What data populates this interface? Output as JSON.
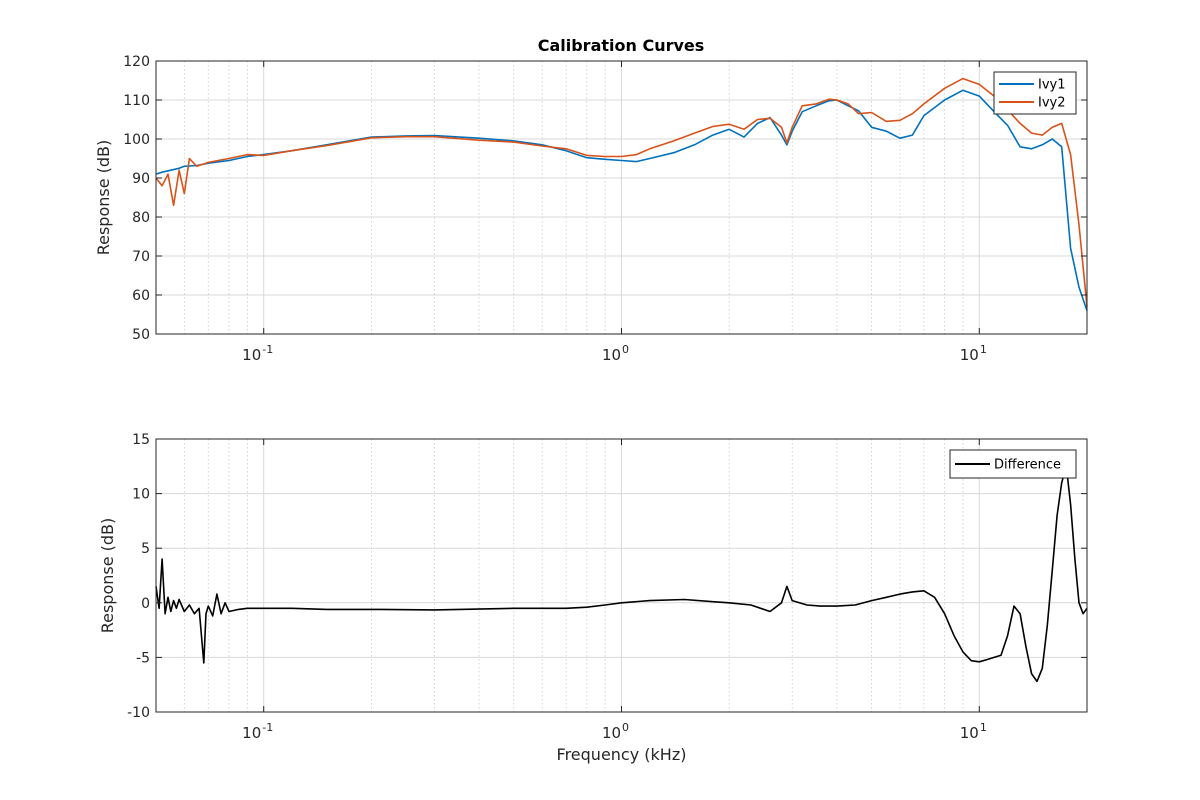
{
  "figure": {
    "title": "Calibration Curves"
  },
  "chart_data": [
    {
      "type": "line",
      "title": "Calibration Curves",
      "xlabel": "",
      "ylabel": "Response (dB)",
      "xscale": "log",
      "xlim": [
        0.05,
        20
      ],
      "ylim": [
        50,
        120
      ],
      "yticks": [
        50,
        60,
        70,
        80,
        90,
        100,
        110,
        120
      ],
      "xticks": [
        {
          "value": 0.1,
          "base": "10",
          "exp": "-1"
        },
        {
          "value": 1,
          "base": "10",
          "exp": "0"
        },
        {
          "value": 10,
          "base": "10",
          "exp": "1"
        }
      ],
      "grid": true,
      "legend_position": "top-right",
      "series": [
        {
          "name": "Ivy1",
          "color": "#0072BD",
          "x": [
            0.05,
            0.052,
            0.055,
            0.058,
            0.06,
            0.065,
            0.07,
            0.08,
            0.09,
            0.1,
            0.12,
            0.15,
            0.2,
            0.25,
            0.3,
            0.4,
            0.5,
            0.6,
            0.7,
            0.8,
            0.9,
            1.0,
            1.1,
            1.2,
            1.4,
            1.6,
            1.8,
            2.0,
            2.2,
            2.4,
            2.6,
            2.8,
            2.9,
            3.0,
            3.2,
            3.5,
            3.8,
            4.0,
            4.3,
            4.6,
            5.0,
            5.5,
            6.0,
            6.5,
            7.0,
            8.0,
            9.0,
            10.0,
            11.0,
            12.0,
            13.0,
            14.0,
            15.0,
            16.0,
            17.0,
            18.0,
            19.0,
            20.0
          ],
          "y": [
            91,
            91.5,
            92,
            92.5,
            93,
            93.2,
            93.8,
            94.5,
            95.5,
            96,
            97,
            98.5,
            100.5,
            100.8,
            100.9,
            100.2,
            99.5,
            98.5,
            97,
            95.2,
            94.8,
            94.5,
            94.2,
            95,
            96.5,
            98.5,
            101,
            102.5,
            100.5,
            104,
            105.5,
            101,
            98.5,
            102,
            107,
            108.5,
            109.8,
            110,
            108.5,
            107.2,
            103,
            102,
            100.2,
            101,
            106,
            110,
            112.5,
            111,
            107,
            103.5,
            98,
            97.5,
            98.5,
            100,
            98,
            72,
            62,
            56
          ]
        },
        {
          "name": "Ivy2",
          "color": "#D95319",
          "x": [
            0.05,
            0.052,
            0.054,
            0.056,
            0.058,
            0.06,
            0.062,
            0.065,
            0.07,
            0.08,
            0.09,
            0.1,
            0.12,
            0.15,
            0.2,
            0.25,
            0.3,
            0.4,
            0.5,
            0.6,
            0.7,
            0.8,
            0.9,
            1.0,
            1.1,
            1.2,
            1.4,
            1.6,
            1.8,
            2.0,
            2.2,
            2.4,
            2.6,
            2.8,
            2.9,
            3.0,
            3.2,
            3.5,
            3.8,
            4.0,
            4.3,
            4.6,
            5.0,
            5.5,
            6.0,
            6.5,
            7.0,
            8.0,
            9.0,
            10.0,
            11.0,
            12.0,
            13.0,
            14.0,
            15.0,
            16.0,
            17.0,
            18.0,
            19.0,
            20.0
          ],
          "y": [
            90,
            88,
            91,
            83,
            92,
            86,
            95,
            93,
            94,
            95,
            96,
            95.8,
            97,
            98.3,
            100.3,
            100.6,
            100.6,
            99.7,
            99.2,
            98.2,
            97.5,
            95.8,
            95.5,
            95.5,
            96,
            97.5,
            99.5,
            101.5,
            103.2,
            103.8,
            102.5,
            105,
            105.3,
            103,
            99,
            103,
            108.5,
            109,
            110.2,
            110,
            109,
            106.5,
            106.8,
            104.5,
            104.8,
            106.5,
            109,
            113,
            115.5,
            114,
            111,
            107.5,
            104,
            101.5,
            101,
            103,
            104,
            96,
            78,
            57
          ]
        }
      ]
    },
    {
      "type": "line",
      "title": "",
      "xlabel": "Frequency (kHz)",
      "ylabel": "Response (dB)",
      "xscale": "log",
      "xlim": [
        0.05,
        20
      ],
      "ylim": [
        -10,
        15
      ],
      "yticks": [
        -10,
        -5,
        0,
        5,
        10,
        15
      ],
      "xticks": [
        {
          "value": 0.1,
          "base": "10",
          "exp": "-1"
        },
        {
          "value": 1,
          "base": "10",
          "exp": "0"
        },
        {
          "value": 10,
          "base": "10",
          "exp": "1"
        }
      ],
      "grid": true,
      "legend_position": "top-right",
      "series": [
        {
          "name": "Difference",
          "color": "#000000",
          "x": [
            0.05,
            0.051,
            0.052,
            0.053,
            0.054,
            0.055,
            0.056,
            0.057,
            0.058,
            0.06,
            0.062,
            0.064,
            0.066,
            0.068,
            0.069,
            0.07,
            0.072,
            0.074,
            0.076,
            0.078,
            0.08,
            0.085,
            0.09,
            0.1,
            0.12,
            0.15,
            0.2,
            0.3,
            0.5,
            0.7,
            0.8,
            0.9,
            1.0,
            1.2,
            1.5,
            1.8,
            2.0,
            2.3,
            2.6,
            2.8,
            2.9,
            3.0,
            3.3,
            3.6,
            4.0,
            4.5,
            5.0,
            5.5,
            6.0,
            6.5,
            7.0,
            7.5,
            8.0,
            8.5,
            9.0,
            9.5,
            10.0,
            10.5,
            11.0,
            11.5,
            12.0,
            12.5,
            13.0,
            13.5,
            14.0,
            14.5,
            15.0,
            15.5,
            16.0,
            16.5,
            17.0,
            17.5,
            18.0,
            18.5,
            19.0,
            19.5,
            20.0
          ],
          "y": [
            1.5,
            -0.5,
            4,
            -1,
            0.5,
            -0.8,
            0.2,
            -0.5,
            0.3,
            -0.8,
            -0.2,
            -1,
            -0.5,
            -5.5,
            -1,
            -0.3,
            -1.2,
            0.8,
            -1,
            0,
            -0.8,
            -0.6,
            -0.5,
            -0.5,
            -0.5,
            -0.6,
            -0.6,
            -0.65,
            -0.5,
            -0.5,
            -0.4,
            -0.2,
            0,
            0.2,
            0.3,
            0.1,
            0,
            -0.2,
            -0.8,
            0,
            1.5,
            0.2,
            -0.2,
            -0.3,
            -0.3,
            -0.2,
            0.2,
            0.5,
            0.8,
            1,
            1.1,
            0.5,
            -1,
            -3,
            -4.5,
            -5.3,
            -5.4,
            -5.2,
            -5,
            -4.8,
            -3,
            -0.3,
            -1,
            -4,
            -6.5,
            -7.2,
            -6,
            -2,
            3,
            8,
            11,
            12.5,
            9,
            4,
            0,
            -1,
            -0.5
          ]
        }
      ]
    }
  ]
}
